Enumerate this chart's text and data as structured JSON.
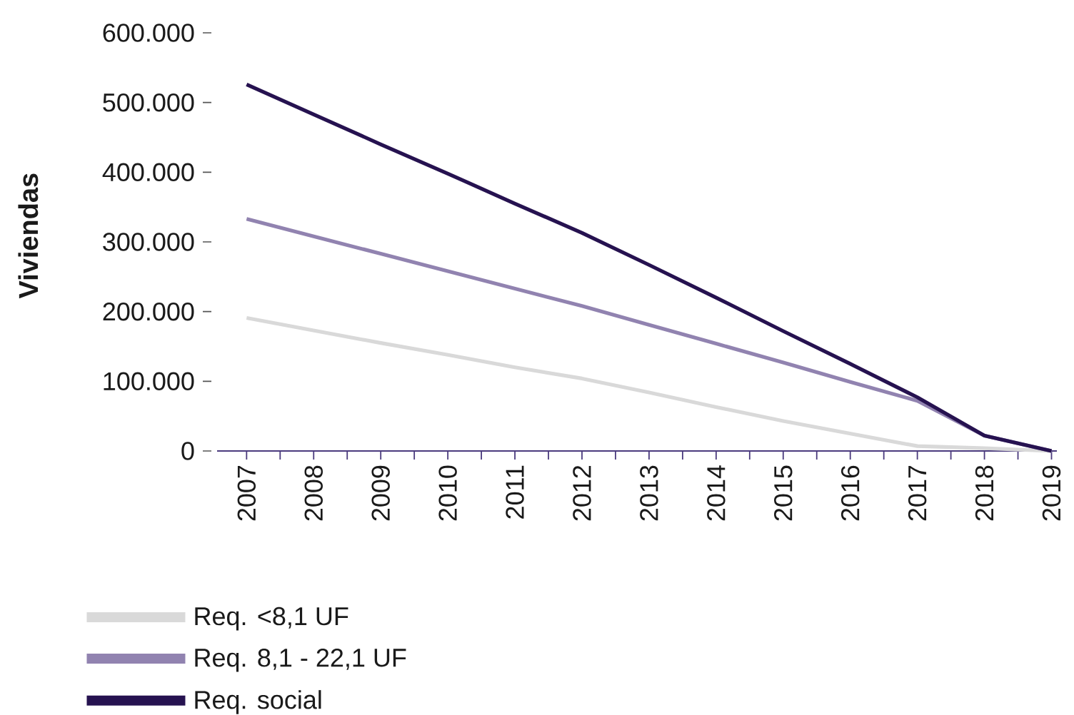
{
  "chart_data": {
    "type": "line",
    "ylabel": "Viviendas",
    "categories": [
      "2007",
      "2008",
      "2009",
      "2010",
      "2011",
      "2012",
      "2013",
      "2014",
      "2015",
      "2016",
      "2017",
      "2018",
      "2019"
    ],
    "series": [
      {
        "name": "Req. <8,1 UF",
        "color": "#d9d9d9",
        "values": [
          191000,
          173000,
          155000,
          138000,
          120000,
          104000,
          84000,
          63000,
          43000,
          25000,
          7000,
          4000,
          0
        ]
      },
      {
        "name": "Req. 8,1 - 22,1 UF",
        "color": "#9183b0",
        "values": [
          333000,
          308000,
          283000,
          258000,
          233000,
          208000,
          181000,
          154000,
          127000,
          99000,
          72000,
          22000,
          0
        ]
      },
      {
        "name": "Req. social",
        "color": "#261250",
        "values": [
          526000,
          483000,
          440000,
          398000,
          355000,
          313000,
          267000,
          220000,
          172000,
          125000,
          77000,
          22000,
          0
        ]
      }
    ],
    "ylim": [
      0,
      600000
    ],
    "yticks": [
      0,
      {
        "value": 100000,
        "label": "100.000"
      },
      {
        "value": 200000,
        "label": "200.000"
      },
      {
        "value": 300000,
        "label": "300.000"
      },
      {
        "value": 400000,
        "label": "400.000"
      },
      {
        "value": 500000,
        "label": "500.000"
      },
      {
        "value": 600000,
        "label": "600.000"
      }
    ],
    "legend": "bottom left"
  }
}
